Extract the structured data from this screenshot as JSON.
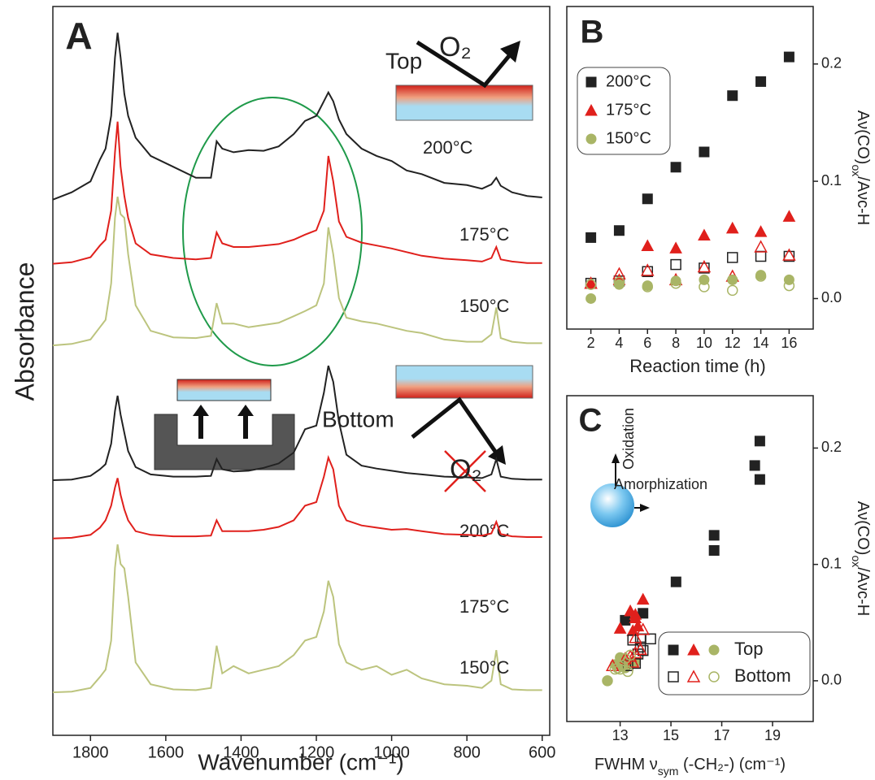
{
  "chart_data": [
    {
      "type": "line",
      "panel_label": "A",
      "x_label": "Wavenumber (cm⁻¹)",
      "y_label": "Absorbance",
      "xlim": [
        1900,
        580
      ],
      "ylim": [
        0,
        100
      ],
      "xticks": [
        1800,
        1600,
        1400,
        1200,
        1000,
        800,
        600
      ],
      "annotations": {
        "top": "Top",
        "top_gas": "O₂",
        "bottom": "Bottom",
        "bottom_gas": "O₂"
      },
      "x": [
        1900,
        1850,
        1800,
        1775,
        1760,
        1745,
        1735,
        1728,
        1720,
        1710,
        1700,
        1680,
        1640,
        1580,
        1520,
        1480,
        1465,
        1450,
        1420,
        1380,
        1340,
        1300,
        1260,
        1230,
        1200,
        1180,
        1168,
        1155,
        1140,
        1120,
        1080,
        1040,
        1000,
        960,
        920,
        860,
        800,
        760,
        735,
        722,
        710,
        680,
        640,
        600
      ],
      "series": [
        {
          "name": "200°C",
          "color": "#222222",
          "values": [
            73.5,
            74.5,
            76,
            79,
            80.5,
            85,
            93,
            96.4,
            93,
            88,
            85,
            82,
            79.5,
            78,
            76.5,
            76.5,
            81.5,
            80.5,
            80,
            80.3,
            80.2,
            80.8,
            82.5,
            84.3,
            85,
            87,
            88.2,
            87,
            84.5,
            82.5,
            80.5,
            79.5,
            78.8,
            77.5,
            77,
            75.8,
            75.5,
            75,
            75.6,
            76.5,
            75.4,
            74.5,
            74,
            73.8
          ]
        },
        {
          "name": "175°C",
          "color": "#e0201c",
          "values": [
            64.7,
            64.9,
            65.6,
            67.2,
            68,
            72,
            80,
            84.2,
            78,
            74,
            71,
            67.5,
            66,
            65.5,
            65.3,
            65.5,
            69,
            67.5,
            67,
            67,
            67.2,
            67.4,
            68,
            68.7,
            69.3,
            72,
            79.5,
            76,
            70.5,
            68.4,
            67.6,
            67.2,
            66.8,
            66.3,
            65.8,
            65.4,
            65.2,
            65,
            65.5,
            67,
            65.3,
            65,
            64.8,
            64.8
          ]
        },
        {
          "name": "150°C",
          "color": "#bcc47e",
          "values": [
            53.5,
            53.7,
            54.3,
            56,
            57,
            62,
            71,
            73.9,
            71.5,
            71,
            66,
            59,
            55.5,
            54.6,
            54.5,
            54.8,
            59.3,
            56.5,
            56.5,
            56,
            56.3,
            56.6,
            57.5,
            58.2,
            59,
            62,
            69.7,
            66,
            60,
            57.3,
            56.8,
            56.5,
            56,
            55.5,
            55.2,
            54.3,
            54,
            54,
            55,
            58.7,
            54.5,
            54,
            53.8,
            53.8
          ]
        },
        {
          "name": "200°C",
          "color": "#222222",
          "values": [
            35,
            35.1,
            35.6,
            36.5,
            37.2,
            40,
            44.5,
            46.6,
            44,
            41.5,
            39,
            36.8,
            35.8,
            35.5,
            35.5,
            35.6,
            37.9,
            36.5,
            36.2,
            36.3,
            36.7,
            37.3,
            38.8,
            42,
            42.5,
            47,
            50.7,
            48.5,
            43,
            38.5,
            37,
            36.6,
            36.3,
            36,
            35.8,
            35.5,
            35.4,
            35.3,
            35.8,
            37.9,
            35.5,
            35.2,
            35.1,
            35.1
          ]
        },
        {
          "name": "175°C",
          "color": "#e0201c",
          "values": [
            27,
            27.1,
            27.5,
            28.5,
            29.5,
            31.5,
            34,
            35.3,
            33,
            31,
            29.5,
            28,
            27.5,
            27.3,
            27.3,
            27.4,
            29.5,
            28,
            28,
            28,
            28.2,
            28.6,
            29.5,
            31.5,
            32,
            35.5,
            38.1,
            36.5,
            31.5,
            29.5,
            28.8,
            28.5,
            28.2,
            28.3,
            28,
            27.6,
            27.5,
            27.4,
            27.7,
            29.3,
            27.6,
            27.3,
            27.2,
            27.2
          ]
        },
        {
          "name": "150°C",
          "color": "#bcc47e",
          "values": [
            5.9,
            6,
            6.5,
            8,
            9,
            13,
            23,
            26.2,
            23.5,
            22.9,
            19,
            10,
            7,
            6.3,
            6.2,
            6.5,
            12.3,
            8.5,
            9.5,
            8.5,
            9,
            9.5,
            11,
            13,
            13.5,
            17,
            21.2,
            19,
            12.5,
            10,
            9,
            9.5,
            8.3,
            9,
            7.8,
            7,
            6.8,
            6.5,
            7.5,
            11.7,
            7,
            6.3,
            6.2,
            6.2
          ]
        }
      ]
    },
    {
      "type": "scatter",
      "panel_label": "B",
      "x_label": "Reaction time (h)",
      "y_label": [
        {
          "text": "Aν(CO)"
        },
        {
          "text": "ox",
          "sub": true
        },
        {
          "text": "/Aνc-H"
        }
      ],
      "xlim": [
        0.3,
        17.7
      ],
      "ylim": [
        -0.026,
        0.249
      ],
      "xticks": [
        2,
        4,
        6,
        8,
        10,
        12,
        14,
        16
      ],
      "yticks": [
        {
          "value": 0,
          "label": "0.0"
        },
        0.1,
        0.2
      ],
      "legend": "upper left",
      "x": [
        2,
        4,
        6,
        8,
        10,
        12,
        14,
        16
      ],
      "series": [
        {
          "name": "200°C",
          "marker": "square",
          "color": "#222222",
          "values": [
            0.052,
            0.058,
            0.085,
            0.112,
            0.125,
            0.173,
            0.185,
            0.206
          ],
          "bottom_values": [
            0.013,
            0.015,
            0.023,
            0.029,
            0.026,
            0.035,
            0.036,
            0.036
          ]
        },
        {
          "name": "175°C",
          "marker": "triangle",
          "color": "#e0201c",
          "values": [
            0.013,
            0.016,
            0.045,
            0.043,
            0.054,
            0.06,
            0.057,
            0.07
          ],
          "bottom_values": [
            0.013,
            0.021,
            0.024,
            0.016,
            0.027,
            0.019,
            0.044,
            0.037
          ]
        },
        {
          "name": "150°C",
          "marker": "circle",
          "color": "#a9b566",
          "values": [
            0.0,
            0.012,
            0.011,
            0.015,
            0.016,
            0.016,
            0.02,
            0.016
          ],
          "bottom_values": [
            0.012,
            0.014,
            0.01,
            0.013,
            0.01,
            0.007,
            0.019,
            0.011
          ]
        }
      ]
    },
    {
      "type": "scatter",
      "panel_label": "C",
      "x_label": [
        {
          "text": "FWHM ν"
        },
        {
          "text": "sym",
          "sub": true
        },
        {
          "text": " (-CH₂-) (cm⁻¹)"
        }
      ],
      "y_label": [
        {
          "text": "Aν(CO)"
        },
        {
          "text": "ox",
          "sub": true
        },
        {
          "text": "/Aνc-H"
        }
      ],
      "xlim": [
        10.9,
        20.6
      ],
      "ylim": [
        -0.035,
        0.245
      ],
      "xticks": [
        13,
        15,
        17,
        19
      ],
      "yticks": [
        {
          "value": 0,
          "label": "0.0"
        },
        0.1,
        0.2
      ],
      "legend": "lower right",
      "annotations": {
        "vertical": "Oxidation",
        "horizontal": "Amorphization"
      },
      "series": [
        {
          "name": "Top",
          "filled": true,
          "markers": [
            {
              "marker": "square",
              "color": "#222222",
              "x": [
                13.2,
                13.9,
                15.2,
                16.7,
                16.7,
                18.3,
                18.5,
                18.5
              ],
              "values": [
                0.052,
                0.058,
                0.085,
                0.112,
                0.125,
                0.185,
                0.173,
                0.206
              ]
            },
            {
              "marker": "triangle",
              "color": "#e0201c",
              "x": [
                13.0,
                13.5,
                13.4,
                13.6,
                13.6,
                13.9,
                13.7,
                13.4
              ],
              "values": [
                0.045,
                0.043,
                0.06,
                0.057,
                0.054,
                0.07,
                0.047,
                0.016
              ]
            },
            {
              "marker": "circle",
              "color": "#a9b566",
              "x": [
                12.5,
                13.1,
                13.2,
                13.3,
                13.6,
                13.0,
                13.5,
                12.8
              ],
              "values": [
                0.0,
                0.012,
                0.011,
                0.015,
                0.016,
                0.02,
                0.016,
                0.014
              ]
            }
          ]
        },
        {
          "name": "Bottom",
          "filled": false,
          "markers": [
            {
              "marker": "square",
              "color": "#222222",
              "x": [
                13.3,
                13.6,
                13.7,
                13.8,
                13.9,
                14.2,
                13.5,
                13.8
              ],
              "values": [
                0.013,
                0.015,
                0.023,
                0.029,
                0.026,
                0.036,
                0.035,
                0.036
              ]
            },
            {
              "marker": "triangle",
              "color": "#e0201c",
              "x": [
                12.7,
                13.4,
                13.6,
                13.5,
                13.8,
                13.2,
                13.9,
                13.6
              ],
              "values": [
                0.013,
                0.021,
                0.024,
                0.016,
                0.027,
                0.019,
                0.044,
                0.037
              ]
            },
            {
              "marker": "circle",
              "color": "#a9b566",
              "x": [
                12.5,
                12.8,
                13.0,
                13.3,
                12.9,
                13.1,
                13.2,
                13.4
              ],
              "values": [
                0.0,
                0.01,
                0.01,
                0.008,
                0.011,
                0.013,
                0.019,
                0.022
              ]
            }
          ]
        }
      ]
    }
  ]
}
